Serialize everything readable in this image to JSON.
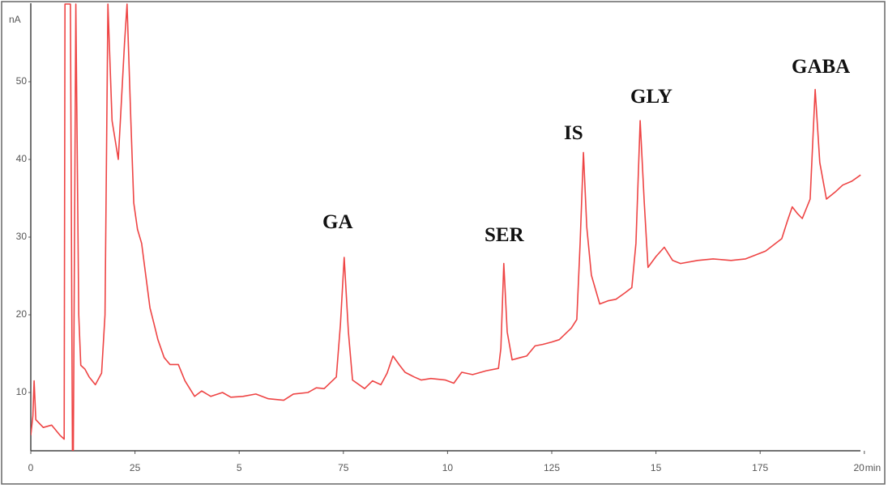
{
  "chart_data": {
    "type": "line",
    "y_label": "nA",
    "x_label": "min",
    "annotations": [
      "GA",
      "SER",
      "IS",
      "GLY",
      "GABA"
    ],
    "xlim": [
      0,
      20
    ],
    "ylim": [
      2.5,
      60
    ],
    "xticks": [
      0,
      {
        "value": 2.5,
        "label": "25"
      },
      5,
      {
        "value": 7.5,
        "label": "75"
      },
      10,
      {
        "value": 12.5,
        "label": "125"
      },
      15,
      {
        "value": 17.5,
        "label": "175"
      },
      20
    ],
    "yticks": [
      10,
      20,
      30,
      40,
      50
    ],
    "series": [
      {
        "color": "#ee4444",
        "x": [
          0,
          0.05,
          0.08,
          0.12,
          0.3,
          0.5,
          0.7,
          0.8,
          0.82,
          0.86,
          0.9,
          0.95,
          1.0,
          1.02,
          1.08,
          1.15,
          1.2,
          1.3,
          1.4,
          1.55,
          1.7,
          1.78,
          1.85,
          1.95,
          2.1,
          2.25,
          2.31,
          2.4,
          2.47,
          2.56,
          2.66,
          2.76,
          2.86,
          2.95,
          3.05,
          3.2,
          3.34,
          3.54,
          3.7,
          3.93,
          4.1,
          4.32,
          4.6,
          4.8,
          5.09,
          5.4,
          5.7,
          6.07,
          6.3,
          6.65,
          6.85,
          7.04,
          7.33,
          7.43,
          7.52,
          7.62,
          7.72,
          8.01,
          8.2,
          8.4,
          8.55,
          8.69,
          8.85,
          8.98,
          9.2,
          9.37,
          9.6,
          9.95,
          10.15,
          10.34,
          10.6,
          10.93,
          11.22,
          11.28,
          11.35,
          11.43,
          11.55,
          11.75,
          11.9,
          12.1,
          12.29,
          12.5,
          12.68,
          12.97,
          13.1,
          13.18,
          13.26,
          13.34,
          13.45,
          13.65,
          13.85,
          14.04,
          14.25,
          14.42,
          14.52,
          14.62,
          14.72,
          14.81,
          15.0,
          15.2,
          15.4,
          15.59,
          16.0,
          16.37,
          16.8,
          17.15,
          17.63,
          18.02,
          18.15,
          18.27,
          18.4,
          18.51,
          18.7,
          18.82,
          18.93,
          19.09,
          19.3,
          19.48,
          19.7,
          19.91
        ],
        "values": [
          4.5,
          7,
          11.5,
          6.5,
          5.5,
          5.8,
          4.5,
          4,
          60,
          60,
          60,
          60,
          2.5,
          2.5,
          60,
          20,
          13.5,
          13,
          12,
          11,
          12.5,
          20,
          60,
          45,
          40,
          55,
          60,
          45,
          34.4,
          31,
          29.2,
          25,
          20.9,
          19,
          16.8,
          14.5,
          13.6,
          13.6,
          11.5,
          9.5,
          10.2,
          9.5,
          10,
          9.4,
          9.5,
          9.8,
          9.2,
          9,
          9.8,
          10,
          10.6,
          10.5,
          12,
          18.8,
          27.4,
          17.8,
          11.6,
          10.5,
          11.5,
          11,
          12.5,
          14.7,
          13.5,
          12.6,
          12,
          11.6,
          11.8,
          11.6,
          11.2,
          12.6,
          12.3,
          12.8,
          13.1,
          15.7,
          26.6,
          17.8,
          14.2,
          14.5,
          14.7,
          16,
          16.2,
          16.5,
          16.8,
          18.3,
          19.4,
          29.2,
          40.9,
          31.3,
          25.1,
          21.4,
          21.8,
          22,
          22.8,
          23.5,
          29.2,
          45,
          34.4,
          26.1,
          27.5,
          28.7,
          27,
          26.6,
          27,
          27.2,
          27,
          27.2,
          28.2,
          29.8,
          32,
          33.9,
          33,
          32.4,
          34.9,
          49,
          39.6,
          34.9,
          35.8,
          36.7,
          37.2,
          38
        ]
      }
    ]
  }
}
